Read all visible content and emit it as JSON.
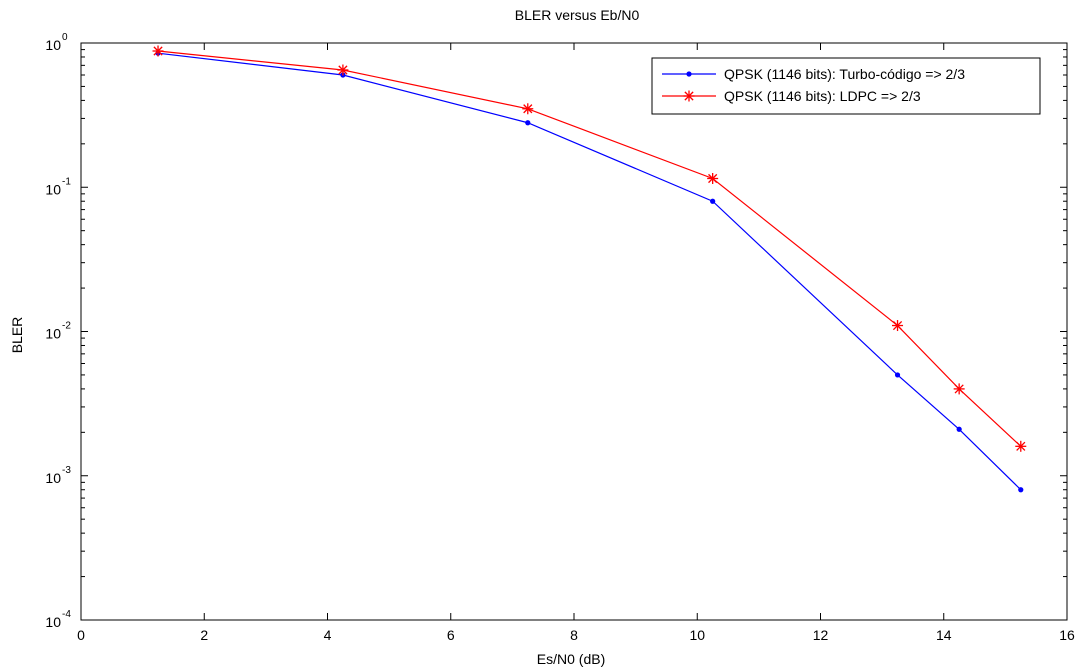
{
  "chart_data": {
    "type": "line",
    "title": "BLER versus Eb/N0",
    "xlabel": "Es/N0 (dB)",
    "ylabel": "BLER",
    "xlim": [
      0,
      16
    ],
    "ylim": [
      0.0001,
      1
    ],
    "yscale": "log",
    "x_ticks": [
      0,
      2,
      4,
      6,
      8,
      10,
      12,
      14,
      16
    ],
    "y_ticks": [
      {
        "value": 1,
        "base": "10",
        "exp": "0"
      },
      {
        "value": 0.1,
        "base": "10",
        "exp": "-1"
      },
      {
        "value": 0.01,
        "base": "10",
        "exp": "-2"
      },
      {
        "value": 0.001,
        "base": "10",
        "exp": "-3"
      },
      {
        "value": 0.0001,
        "base": "10",
        "exp": "-4"
      }
    ],
    "grid": false,
    "legend_position": "top-right",
    "series": [
      {
        "name": "QPSK (1146 bits): Turbo-código => 2/3",
        "color": "#0000ff",
        "marker": "dot",
        "x": [
          1.25,
          4.25,
          7.25,
          10.25,
          13.25,
          14.25,
          15.25
        ],
        "y": [
          0.85,
          0.6,
          0.28,
          0.08,
          0.005,
          0.0021,
          0.0008
        ]
      },
      {
        "name": "QPSK (1146 bits): LDPC => 2/3",
        "color": "#ff0000",
        "marker": "star",
        "x": [
          1.25,
          4.25,
          7.25,
          10.25,
          13.25,
          14.25,
          15.25
        ],
        "y": [
          0.88,
          0.65,
          0.35,
          0.115,
          0.011,
          0.004,
          0.0016
        ]
      }
    ]
  }
}
